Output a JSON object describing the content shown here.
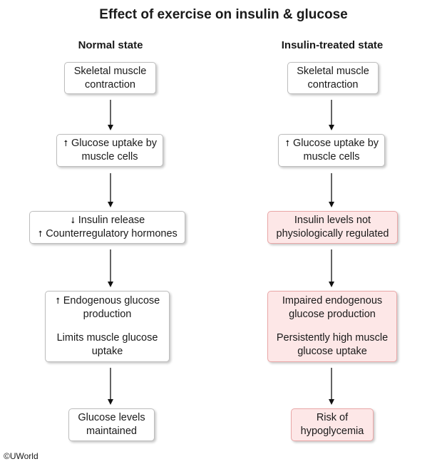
{
  "title": "Effect of exercise on insulin & glucose",
  "columns": {
    "normal": {
      "heading": "Normal state",
      "boxes": [
        {
          "lines": [
            "Skeletal muscle",
            "contraction"
          ]
        },
        {
          "lines": [
            "Glucose uptake by",
            "muscle cells"
          ]
        },
        {
          "lines": [
            "Insulin release",
            "Counterregulatory hormones"
          ]
        },
        {
          "lines": [
            "Endogenous glucose",
            "production",
            "Limits muscle glucose",
            "uptake"
          ]
        },
        {
          "lines": [
            "Glucose levels",
            "maintained"
          ]
        }
      ]
    },
    "treated": {
      "heading": "Insulin-treated state",
      "boxes": [
        {
          "lines": [
            "Skeletal muscle",
            "contraction"
          ]
        },
        {
          "lines": [
            "Glucose uptake by",
            "muscle cells"
          ]
        },
        {
          "lines": [
            "Insulin levels not",
            "physiologically regulated"
          ]
        },
        {
          "lines": [
            "Impaired endogenous",
            "glucose production",
            "Persistently high muscle",
            "glucose uptake"
          ]
        },
        {
          "lines": [
            "Risk of",
            "hypoglycemia"
          ]
        }
      ]
    }
  },
  "icons": {
    "increase": "up-arrow-icon",
    "decrease": "down-arrow-icon"
  },
  "colors": {
    "highlight_fill": "#fde7e7",
    "highlight_border": "#e9a7a7"
  },
  "copyright": "©UWorld"
}
